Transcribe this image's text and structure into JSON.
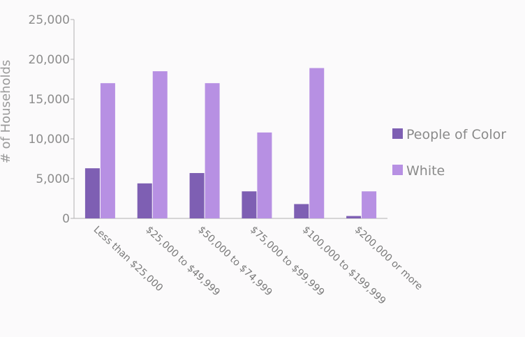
{
  "chart_data": {
    "type": "bar",
    "title": "",
    "xlabel": "",
    "ylabel": "# of Households",
    "ylim": [
      0,
      25000
    ],
    "yticks": [
      "0",
      "5,000",
      "10,000",
      "15,000",
      "20,000",
      "25,000"
    ],
    "categories": [
      "Less than $25,000",
      "$25,000 to $49,999",
      "$50,000 to $74,999",
      "$75,000 to $99,999",
      "$100,000 to $199,999",
      "$200,000 or more"
    ],
    "series": [
      {
        "name": "People of Color",
        "color": "#7e5fb3",
        "values": [
          6300,
          4400,
          5700,
          3400,
          1800,
          300
        ]
      },
      {
        "name": "White",
        "color": "#b790e3",
        "values": [
          17000,
          18500,
          17000,
          10800,
          18900,
          3400
        ]
      }
    ],
    "legend": {
      "position": "right"
    },
    "grid": false
  }
}
